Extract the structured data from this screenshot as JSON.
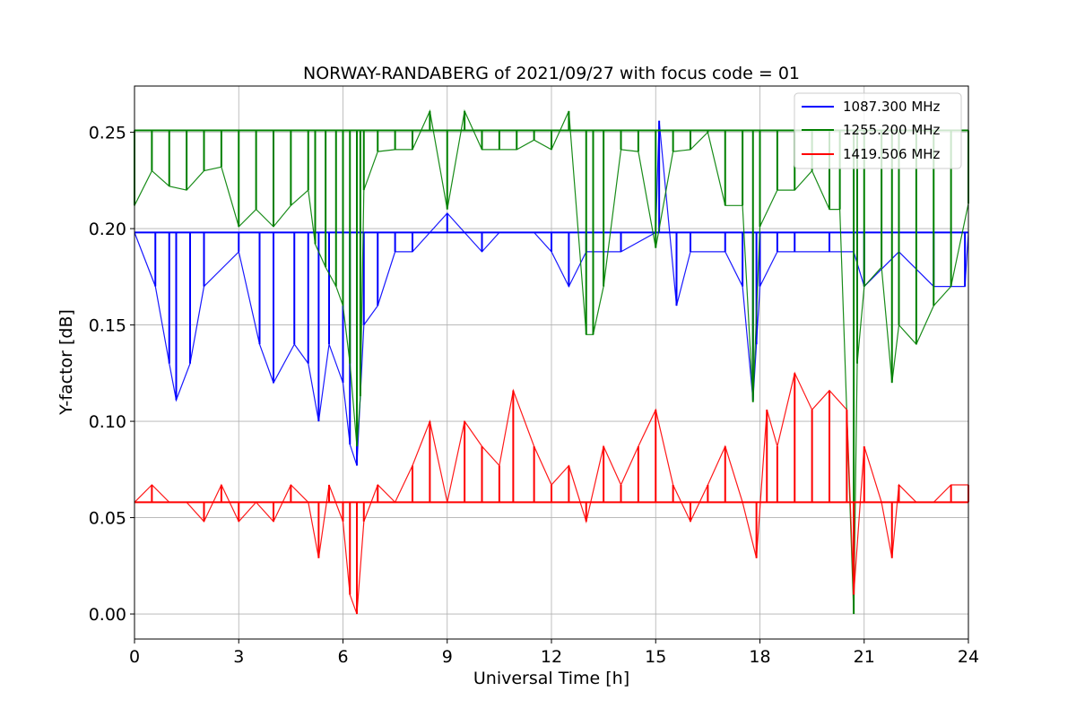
{
  "chart_data": {
    "type": "line",
    "title": "NORWAY-RANDABERG of 2021/09/27 with focus code = 01",
    "xlabel": "Universal Time [h]",
    "ylabel": "Y-factor [dB]",
    "xlim": [
      0,
      24
    ],
    "ylim": [
      -0.013,
      0.274
    ],
    "xticks": [
      0,
      3,
      6,
      9,
      12,
      15,
      18,
      21,
      24
    ],
    "xtick_labels": [
      "0",
      "3",
      "6",
      "9",
      "12",
      "15",
      "18",
      "21",
      "24"
    ],
    "yticks": [
      0.0,
      0.05,
      0.1,
      0.15,
      0.2,
      0.25
    ],
    "ytick_labels": [
      "0.00",
      "0.05",
      "0.10",
      "0.15",
      "0.20",
      "0.25"
    ],
    "grid": true,
    "legend_position": "top-right",
    "series": [
      {
        "name": "1087.300 MHz",
        "color": "#0000ff",
        "baseline": 0.198,
        "x": [
          0.0,
          0.6,
          1.0,
          1.2,
          1.6,
          2.0,
          3.0,
          3.6,
          4.0,
          4.6,
          5.0,
          5.3,
          5.6,
          6.0,
          6.2,
          6.4,
          6.6,
          7.0,
          7.5,
          8.0,
          8.5,
          9.0,
          9.5,
          10.0,
          10.5,
          11.0,
          11.5,
          12.0,
          12.5,
          13.0,
          14.0,
          15.0,
          15.1,
          15.6,
          16.0,
          17.0,
          17.5,
          17.8,
          17.9,
          18.0,
          18.5,
          19.0,
          20.0,
          20.7,
          21.0,
          22.0,
          23.0,
          23.9,
          24.0
        ],
        "y": [
          0.198,
          0.17,
          0.13,
          0.111,
          0.13,
          0.17,
          0.188,
          0.14,
          0.12,
          0.14,
          0.13,
          0.1,
          0.14,
          0.12,
          0.088,
          0.077,
          0.15,
          0.16,
          0.188,
          0.188,
          0.198,
          0.208,
          0.198,
          0.188,
          0.198,
          0.198,
          0.198,
          0.188,
          0.17,
          0.188,
          0.188,
          0.198,
          0.256,
          0.16,
          0.188,
          0.188,
          0.17,
          0.111,
          0.14,
          0.17,
          0.188,
          0.188,
          0.188,
          0.188,
          0.17,
          0.188,
          0.17,
          0.17,
          0.198
        ]
      },
      {
        "name": "1255.200 MHz",
        "color": "#008000",
        "baseline": 0.251,
        "x": [
          0.0,
          0.5,
          1.0,
          1.5,
          2.0,
          2.5,
          3.0,
          3.5,
          4.0,
          4.5,
          5.0,
          5.2,
          5.5,
          5.8,
          6.0,
          6.2,
          6.4,
          6.5,
          6.6,
          7.0,
          7.5,
          8.0,
          8.5,
          9.0,
          9.5,
          10.0,
          10.5,
          11.0,
          11.5,
          12.0,
          12.5,
          13.0,
          13.2,
          13.5,
          14.0,
          14.5,
          15.0,
          15.5,
          16.0,
          16.5,
          17.0,
          17.5,
          17.8,
          18.0,
          18.5,
          19.0,
          19.5,
          20.0,
          20.3,
          20.7,
          20.8,
          21.0,
          21.5,
          21.8,
          22.0,
          22.5,
          23.0,
          23.5,
          24.0
        ],
        "y": [
          0.212,
          0.23,
          0.222,
          0.22,
          0.23,
          0.232,
          0.201,
          0.21,
          0.201,
          0.212,
          0.22,
          0.192,
          0.18,
          0.17,
          0.16,
          0.13,
          0.087,
          0.113,
          0.22,
          0.24,
          0.241,
          0.241,
          0.261,
          0.21,
          0.261,
          0.241,
          0.241,
          0.241,
          0.246,
          0.241,
          0.261,
          0.145,
          0.145,
          0.17,
          0.241,
          0.24,
          0.19,
          0.24,
          0.241,
          0.25,
          0.212,
          0.212,
          0.11,
          0.201,
          0.22,
          0.22,
          0.23,
          0.21,
          0.21,
          0.0,
          0.13,
          0.17,
          0.18,
          0.12,
          0.15,
          0.14,
          0.16,
          0.17,
          0.213
        ]
      },
      {
        "name": "1419.506 MHz",
        "color": "#ff0000",
        "baseline": 0.058,
        "x": [
          0.0,
          0.5,
          1.0,
          1.5,
          2.0,
          2.5,
          3.0,
          3.5,
          4.0,
          4.5,
          5.0,
          5.3,
          5.6,
          6.0,
          6.2,
          6.4,
          6.6,
          7.0,
          7.5,
          8.0,
          8.5,
          9.0,
          9.5,
          10.0,
          10.5,
          10.9,
          11.5,
          12.0,
          12.5,
          13.0,
          13.5,
          14.0,
          14.5,
          15.0,
          15.5,
          16.0,
          16.5,
          17.0,
          17.5,
          17.9,
          18.2,
          18.5,
          19.0,
          19.5,
          20.0,
          20.5,
          20.7,
          21.0,
          21.5,
          21.8,
          22.0,
          22.5,
          23.0,
          23.5,
          24.0
        ],
        "y": [
          0.058,
          0.067,
          0.058,
          0.058,
          0.048,
          0.067,
          0.048,
          0.058,
          0.048,
          0.067,
          0.058,
          0.029,
          0.067,
          0.048,
          0.01,
          0.0,
          0.048,
          0.067,
          0.058,
          0.077,
          0.1,
          0.058,
          0.1,
          0.087,
          0.077,
          0.116,
          0.087,
          0.067,
          0.077,
          0.048,
          0.087,
          0.067,
          0.087,
          0.106,
          0.067,
          0.048,
          0.067,
          0.087,
          0.058,
          0.029,
          0.106,
          0.087,
          0.125,
          0.106,
          0.116,
          0.106,
          0.01,
          0.087,
          0.058,
          0.029,
          0.067,
          0.058,
          0.058,
          0.067,
          0.067
        ]
      }
    ]
  }
}
